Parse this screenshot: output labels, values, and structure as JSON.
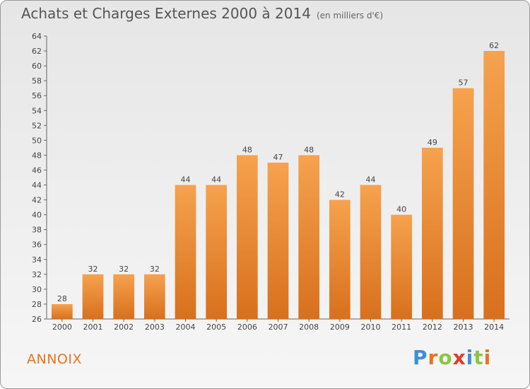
{
  "header": {
    "title": "Achats et Charges Externes 2000 à 2014",
    "unit": "(en milliers d'€)"
  },
  "footer": {
    "commune": "ANNOIX",
    "logo_letters": [
      "P",
      "r",
      "o",
      "x",
      "i",
      "t",
      "i"
    ],
    "logo_colors": [
      "#3d8fd6",
      "#e8741f",
      "#8cc63f",
      "#e33b2e",
      "#3d8fd6",
      "#8cc63f",
      "#e8741f"
    ]
  },
  "chart_data": {
    "type": "bar",
    "title": "Achats et Charges Externes 2000 à 2014",
    "xlabel": "",
    "ylabel": "",
    "categories": [
      "2000",
      "2001",
      "2002",
      "2003",
      "2004",
      "2005",
      "2006",
      "2007",
      "2008",
      "2009",
      "2010",
      "2011",
      "2012",
      "2013",
      "2014"
    ],
    "values": [
      28,
      32,
      32,
      32,
      44,
      44,
      48,
      47,
      48,
      42,
      44,
      40,
      49,
      57,
      62
    ],
    "ylim": [
      26,
      64
    ],
    "ytick_step": 2,
    "grid": false,
    "bar_color_top": "#f6a24e",
    "bar_color_bottom": "#d8701d"
  }
}
